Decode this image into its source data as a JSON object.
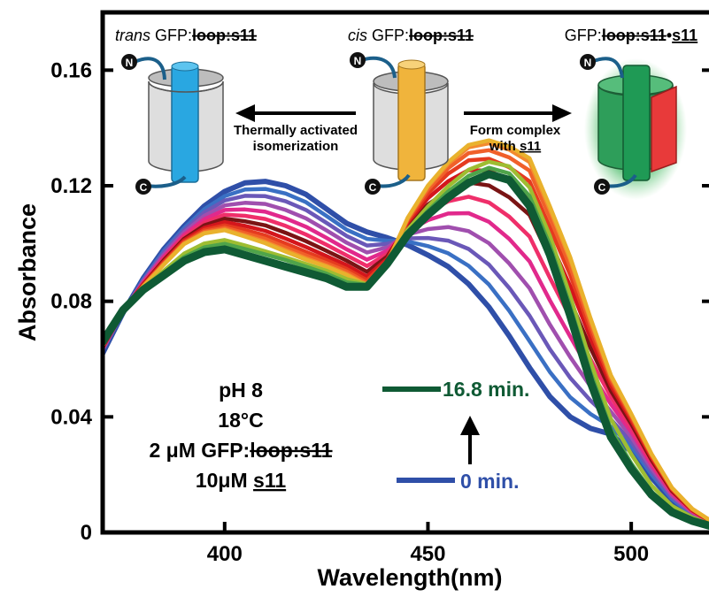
{
  "chart_data": {
    "type": "line",
    "xlabel": "Wavelength(nm)",
    "ylabel": "Absorbance",
    "xlim": [
      370,
      520
    ],
    "ylim": [
      0,
      0.18
    ],
    "x_ticks": [
      400,
      450,
      500
    ],
    "y_ticks": [
      0,
      0.04,
      0.08,
      0.12,
      0.16
    ],
    "x_tick_labels": [
      "400",
      "450",
      "500"
    ],
    "y_tick_labels": [
      "0",
      "0.04",
      "0.08",
      "0.12",
      "0.16"
    ],
    "grid": false,
    "x": [
      370,
      375,
      380,
      385,
      390,
      395,
      400,
      405,
      410,
      415,
      420,
      425,
      430,
      435,
      440,
      445,
      450,
      455,
      460,
      465,
      470,
      475,
      480,
      485,
      490,
      495,
      500,
      505,
      510,
      515,
      520
    ],
    "series": [
      {
        "color": "#2f4fa8",
        "values": [
          0.062,
          0.076,
          0.088,
          0.098,
          0.106,
          0.113,
          0.118,
          0.121,
          0.1215,
          0.12,
          0.117,
          0.112,
          0.107,
          0.104,
          0.102,
          0.0995,
          0.096,
          0.092,
          0.086,
          0.078,
          0.068,
          0.057,
          0.047,
          0.04,
          0.036,
          0.034,
          0.028,
          0.019,
          0.011,
          0.006,
          0.003
        ]
      },
      {
        "color": "#3a70c4",
        "values": [
          0.0629,
          0.0761,
          0.0876,
          0.0974,
          0.1053,
          0.1119,
          0.1164,
          0.1187,
          0.1189,
          0.1173,
          0.1143,
          0.1096,
          0.1048,
          0.1016,
          0.101,
          0.1007,
          0.0991,
          0.0966,
          0.0923,
          0.0858,
          0.0767,
          0.0662,
          0.0555,
          0.0468,
          0.041,
          0.0366,
          0.0298,
          0.0201,
          0.0116,
          0.0063,
          0.003
        ]
      },
      {
        "color": "#6a58b8",
        "values": [
          0.0631,
          0.0762,
          0.0872,
          0.0968,
          0.1046,
          0.1108,
          0.1149,
          0.1165,
          0.1164,
          0.1146,
          0.1116,
          0.1072,
          0.1026,
          0.0993,
          0.0999,
          0.1018,
          0.1019,
          0.101,
          0.0981,
          0.0927,
          0.0846,
          0.075,
          0.0634,
          0.0535,
          0.0456,
          0.0391,
          0.0314,
          0.0211,
          0.0122,
          0.0066,
          0.0031
        ]
      },
      {
        "color": "#a04fae",
        "values": [
          0.0634,
          0.0763,
          0.0869,
          0.0961,
          0.1038,
          0.1096,
          0.1132,
          0.1141,
          0.1137,
          0.1116,
          0.1087,
          0.1046,
          0.1003,
          0.0969,
          0.0987,
          0.1031,
          0.105,
          0.1057,
          0.1043,
          0.1001,
          0.0931,
          0.0845,
          0.0719,
          0.0607,
          0.0505,
          0.0418,
          0.0331,
          0.0222,
          0.0128,
          0.0069,
          0.0032
        ]
      },
      {
        "color": "#e1298c",
        "values": [
          0.0637,
          0.0764,
          0.0865,
          0.0954,
          0.103,
          0.1084,
          0.1116,
          0.1118,
          0.111,
          0.1087,
          0.1058,
          0.102,
          0.098,
          0.0944,
          0.0975,
          0.1043,
          0.1081,
          0.1104,
          0.1105,
          0.1075,
          0.1016,
          0.0938,
          0.0803,
          0.0678,
          0.0554,
          0.0444,
          0.0348,
          0.0233,
          0.0134,
          0.0072,
          0.0033
        ]
      },
      {
        "color": "#ef2f6a",
        "values": [
          0.0639,
          0.0765,
          0.0862,
          0.0947,
          0.1023,
          0.1073,
          0.11,
          0.1096,
          0.1085,
          0.1061,
          0.1031,
          0.0996,
          0.0959,
          0.0922,
          0.0964,
          0.1054,
          0.111,
          0.1146,
          0.1162,
          0.1142,
          0.1093,
          0.1024,
          0.0881,
          0.0744,
          0.0599,
          0.0469,
          0.0363,
          0.0242,
          0.014,
          0.0074,
          0.0034
        ]
      },
      {
        "color": "#7a1414",
        "values": [
          0.0641,
          0.0766,
          0.0859,
          0.0942,
          0.1016,
          0.1063,
          0.1086,
          0.1077,
          0.1063,
          0.1037,
          0.1008,
          0.0975,
          0.0941,
          0.0902,
          0.0955,
          0.1064,
          0.1135,
          0.1183,
          0.1211,
          0.1201,
          0.116,
          0.1099,
          0.0949,
          0.0802,
          0.0638,
          0.049,
          0.0376,
          0.0251,
          0.0144,
          0.0077,
          0.0035
        ]
      },
      {
        "color": "#d4161c",
        "values": [
          0.0643,
          0.0767,
          0.0857,
          0.0937,
          0.1011,
          0.1054,
          0.1074,
          0.1061,
          0.1044,
          0.1017,
          0.0988,
          0.0957,
          0.0925,
          0.0886,
          0.0947,
          0.1072,
          0.1157,
          0.1216,
          0.1254,
          0.1252,
          0.1218,
          0.1164,
          0.1008,
          0.0852,
          0.0672,
          0.0508,
          0.0388,
          0.0258,
          0.0148,
          0.0078,
          0.0035
        ]
      },
      {
        "color": "#e53b1f",
        "values": [
          0.0645,
          0.0767,
          0.0855,
          0.0933,
          0.1006,
          0.1047,
          0.1063,
          0.1047,
          0.1028,
          0.1,
          0.0971,
          0.0943,
          0.0912,
          0.0873,
          0.0941,
          0.1078,
          0.1174,
          0.1242,
          0.1288,
          0.1293,
          0.1264,
          0.1215,
          0.1055,
          0.0891,
          0.0699,
          0.0522,
          0.0397,
          0.0264,
          0.0151,
          0.008,
          0.0036
        ]
      },
      {
        "color": "#f0602a",
        "values": [
          0.0646,
          0.0768,
          0.0853,
          0.093,
          0.1002,
          0.1041,
          0.1055,
          0.1036,
          0.1016,
          0.0987,
          0.0959,
          0.0932,
          0.0903,
          0.0864,
          0.0936,
          0.1083,
          0.1187,
          0.1261,
          0.1313,
          0.1323,
          0.1298,
          0.1252,
          0.1089,
          0.092,
          0.0719,
          0.0532,
          0.0404,
          0.0268,
          0.0153,
          0.0081,
          0.0036
        ]
      },
      {
        "color": "#f38a2e",
        "values": [
          0.0647,
          0.0768,
          0.0852,
          0.0927,
          0.0999,
          0.1037,
          0.1049,
          0.1028,
          0.1006,
          0.0977,
          0.0949,
          0.0924,
          0.0895,
          0.0857,
          0.0932,
          0.1087,
          0.1197,
          0.1276,
          0.1333,
          0.1347,
          0.1325,
          0.1282,
          0.1117,
          0.0944,
          0.0734,
          0.054,
          0.0409,
          0.0271,
          0.0155,
          0.0082,
          0.0036
        ]
      },
      {
        "color": "#e9b22d",
        "values": [
          0.0647,
          0.0769,
          0.0852,
          0.0926,
          0.0998,
          0.1035,
          0.1046,
          0.1024,
          0.1001,
          0.0972,
          0.0944,
          0.092,
          0.0891,
          0.0853,
          0.093,
          0.1089,
          0.1201,
          0.1282,
          0.1341,
          0.1357,
          0.1336,
          0.1295,
          0.1128,
          0.0953,
          0.0741,
          0.0544,
          0.0411,
          0.0272,
          0.0155,
          0.0082,
          0.0036
        ]
      },
      {
        "color": "#9ebd32",
        "values": [
          0.0655,
          0.077,
          0.0846,
          0.0905,
          0.0965,
          0.1,
          0.1012,
          0.0993,
          0.0973,
          0.0952,
          0.0929,
          0.0906,
          0.0877,
          0.0859,
          0.0931,
          0.1048,
          0.1128,
          0.1198,
          0.1255,
          0.1283,
          0.1267,
          0.1194,
          0.1026,
          0.0818,
          0.059,
          0.0392,
          0.0271,
          0.0163,
          0.0092,
          0.0052,
          0.0025
        ]
      },
      {
        "color": "#4fa44a",
        "values": [
          0.0658,
          0.0771,
          0.0844,
          0.0898,
          0.0953,
          0.0987,
          0.0999,
          0.0981,
          0.0962,
          0.0943,
          0.092,
          0.0896,
          0.0866,
          0.0856,
          0.093,
          0.1039,
          0.1113,
          0.118,
          0.1234,
          0.1262,
          0.1243,
          0.1164,
          0.0994,
          0.0782,
          0.0552,
          0.0357,
          0.0239,
          0.0141,
          0.0079,
          0.0045,
          0.0022
        ]
      },
      {
        "color": "#0f5a34",
        "values": [
          0.066,
          0.077,
          0.084,
          0.089,
          0.094,
          0.097,
          0.098,
          0.096,
          0.094,
          0.092,
          0.09,
          0.088,
          0.085,
          0.085,
          0.093,
          0.103,
          0.11,
          0.116,
          0.121,
          0.124,
          0.122,
          0.113,
          0.096,
          0.075,
          0.052,
          0.033,
          0.022,
          0.013,
          0.007,
          0.004,
          0.002
        ]
      }
    ],
    "legend": [
      {
        "label": "16.8 min.",
        "color": "#0f5a34"
      },
      {
        "label": "0 min.",
        "color": "#2f4fa8"
      }
    ]
  },
  "conditions": {
    "line1": "pH 8",
    "line2": "18°C",
    "line3_prefix": "2 μM GFP:",
    "line3_strike": "loop:s11",
    "line4_prefix": "10μM ",
    "line4_underline": "s11"
  },
  "diagram": {
    "trans_italic": "trans",
    "trans_rest": " GFP:",
    "trans_strike": "loop:s11",
    "cis_italic": "cis",
    "cis_rest": " GFP:",
    "cis_strike": "loop:s11",
    "complex_prefix": "GFP:",
    "complex_strike": "loop:s11",
    "complex_dot": "•",
    "complex_underline": "s11",
    "arrow_left_line1": "Thermally activated",
    "arrow_left_line2": "isomerization",
    "arrow_right_line1": "Form complex",
    "arrow_right_line2_prefix": "with ",
    "arrow_right_line2_underline": "s11",
    "terminus_n": "N",
    "terminus_c": "C",
    "colors": {
      "trans": "#29a7e1",
      "cis": "#f0b43c",
      "complex": "#1f9a55",
      "strand": "#e83a3a"
    }
  }
}
